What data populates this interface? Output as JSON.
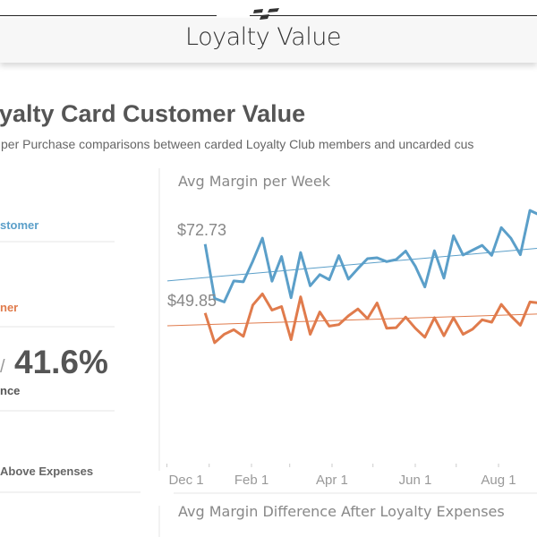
{
  "header": {
    "title": "Loyalty Value",
    "logo_icon": "checkered-flag-logo-icon"
  },
  "page": {
    "title": "yalty Card Customer Value",
    "subtitle": "per Purchase comparisons between carded Loyalty Club members and uncarded cus"
  },
  "kpis": {
    "carded_label": "stomer",
    "uncarded_label": "ner",
    "separator": "/",
    "difference_value": "41.6%",
    "difference_label": "nce",
    "above_expenses_label": "Above Expenses"
  },
  "colors": {
    "carded": "#5b9fc9",
    "uncarded": "#e07b4c",
    "text": "#555555"
  },
  "chart_data": {
    "type": "line",
    "title": "Avg Margin per Week",
    "x_tick_labels": [
      "Dec 1",
      "Feb 1",
      "Apr 1",
      "Jun 1",
      "Aug 1"
    ],
    "x": [
      "Dec 29",
      "Jan 5",
      "Jan 12",
      "Jan 19",
      "Jan 26",
      "Feb 2",
      "Feb 9",
      "Feb 16",
      "Feb 23",
      "Mar 2",
      "Mar 9",
      "Mar 16",
      "Mar 23",
      "Mar 30",
      "Apr 6",
      "Apr 13",
      "Apr 20",
      "Apr 27",
      "May 4",
      "May 11",
      "May 18",
      "May 25",
      "Jun 1",
      "Jun 8",
      "Jun 15",
      "Jun 22",
      "Jun 29",
      "Jul 6",
      "Jul 13",
      "Jul 20",
      "Jul 27",
      "Aug 3",
      "Aug 10",
      "Aug 17",
      "Aug 24",
      "Aug 31"
    ],
    "series": [
      {
        "color": "#5b9fc9",
        "start_label": "$72.73",
        "values": [
          72.73,
          54.7,
          53.5,
          60.5,
          60.2,
          67.1,
          74.7,
          60.4,
          68.6,
          54.9,
          69.9,
          58.9,
          62.6,
          60.9,
          68.9,
          61.1,
          64.6,
          67.9,
          68.2,
          66.9,
          67.6,
          70.4,
          65.4,
          58.5,
          70.5,
          61.4,
          75.5,
          69.1,
          70.7,
          72.3,
          69.0,
          78.2,
          74.7,
          69.2,
          83.9,
          82.4
        ],
        "trend": [
          60.5,
          71.3
        ]
      },
      {
        "color": "#e07b4c",
        "start_label": "$49.85",
        "values": [
          49.85,
          40.0,
          42.8,
          44.3,
          42.1,
          52.5,
          56.2,
          50.8,
          52.0,
          41.0,
          55.2,
          42.8,
          50.2,
          45.5,
          46.0,
          48.9,
          51.2,
          48.0,
          53.2,
          44.8,
          45.0,
          48.5,
          44.8,
          41.8,
          48.3,
          42.3,
          48.3,
          42.8,
          44.5,
          47.6,
          46.8,
          52.7,
          48.9,
          45.8,
          53.5,
          53.2
        ],
        "trend": [
          45.6,
          49.5
        ]
      }
    ],
    "trendlines": true,
    "grid": false
  },
  "second_chart": {
    "title": "Avg Margin Difference After Loyalty Expenses"
  }
}
